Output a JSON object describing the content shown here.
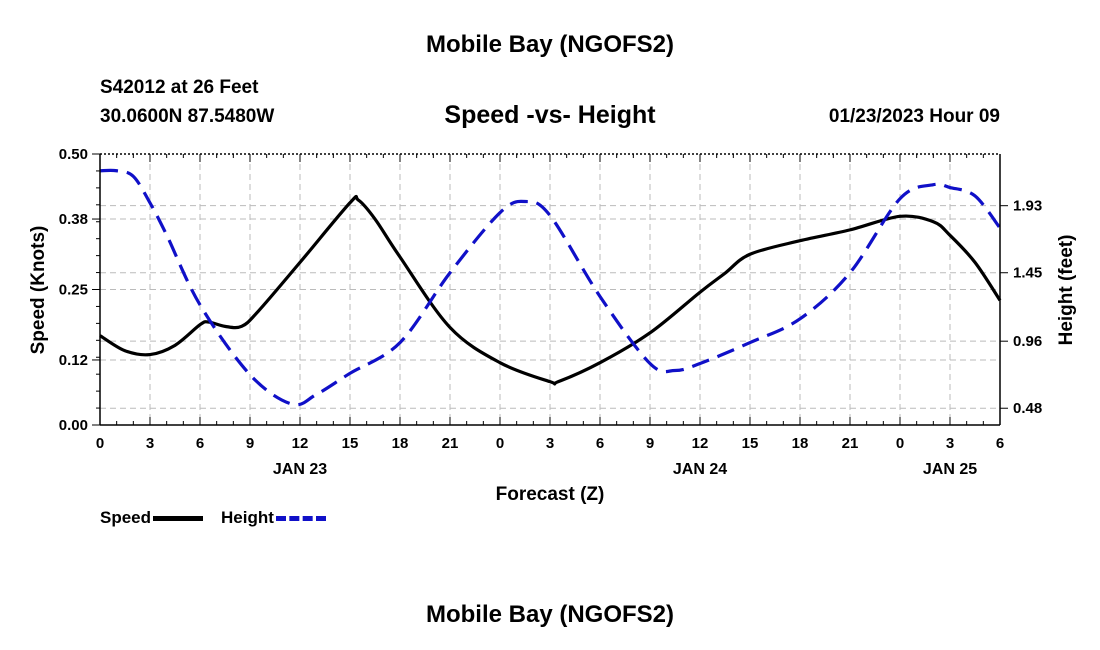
{
  "header": {
    "title": "Mobile Bay (NGOFS2)",
    "station": "S42012 at 26 Feet",
    "coords": "30.0600N  87.5480W",
    "subtitle": "Speed -vs- Height",
    "datetime": "01/23/2023 Hour 09"
  },
  "footer": {
    "title": "Mobile Bay (NGOFS2)"
  },
  "legend": {
    "speed": "Speed",
    "height": "Height"
  },
  "colors": {
    "speed": "#000000",
    "height": "#1010c8",
    "grid": "#bbbbbb"
  },
  "chart_data": {
    "type": "line",
    "xlabel": "Forecast (Z)",
    "ylabel": "Speed (Knots)",
    "y2label": "Height (feet)",
    "x_unit": "hours from 2023-01-23 00Z",
    "xlim": [
      0,
      54
    ],
    "ylim": [
      0,
      0.5
    ],
    "y2lim": [
      0.36,
      2.3
    ],
    "x_ticks": [
      0,
      3,
      6,
      9,
      12,
      15,
      18,
      21,
      24,
      27,
      30,
      33,
      36,
      39,
      42,
      45,
      48,
      51,
      54
    ],
    "x_tick_labels": [
      "0",
      "3",
      "6",
      "9",
      "12",
      "15",
      "18",
      "21",
      "0",
      "3",
      "6",
      "9",
      "12",
      "15",
      "18",
      "21",
      "0",
      "3",
      "6"
    ],
    "date_labels": [
      {
        "x": 12,
        "label": "JAN 23"
      },
      {
        "x": 36,
        "label": "JAN 24"
      },
      {
        "x": 51,
        "label": "JAN 25"
      }
    ],
    "y_ticks": [
      0.0,
      0.12,
      0.25,
      0.38,
      0.5
    ],
    "y_tick_labels": [
      "0.00",
      "0.12",
      "0.25",
      "0.38",
      "0.50"
    ],
    "y2_ticks": [
      0.48,
      0.96,
      1.45,
      1.93
    ],
    "y2_tick_labels": [
      "0.48",
      "0.96",
      "1.45",
      "1.93"
    ],
    "grid": true,
    "legend_position": "bottom-left",
    "series": [
      {
        "name": "Speed",
        "axis": "left",
        "style": "solid",
        "x": [
          0,
          1.5,
          3,
          4.5,
          6,
          6.5,
          7.5,
          8.5,
          9.5,
          12,
          15,
          15.5,
          16.5,
          18,
          21,
          24,
          27,
          27.5,
          30,
          33,
          36,
          37.5,
          39,
          42,
          45,
          48,
          50,
          51,
          52.5,
          54
        ],
        "y": [
          0.165,
          0.137,
          0.13,
          0.147,
          0.185,
          0.19,
          0.182,
          0.182,
          0.21,
          0.3,
          0.41,
          0.415,
          0.38,
          0.31,
          0.18,
          0.115,
          0.08,
          0.08,
          0.115,
          0.17,
          0.245,
          0.28,
          0.315,
          0.34,
          0.36,
          0.385,
          0.375,
          0.35,
          0.3,
          0.23
        ]
      },
      {
        "name": "Height",
        "axis": "right",
        "style": "dashed",
        "x": [
          0,
          1,
          2,
          3,
          4,
          6,
          9,
          11.5,
          13,
          15,
          18,
          21,
          24,
          25.5,
          27,
          30,
          33,
          34.5,
          36,
          39,
          42,
          45,
          48,
          50,
          51,
          52.5,
          54
        ],
        "y": [
          2.18,
          2.18,
          2.14,
          1.95,
          1.72,
          1.22,
          0.72,
          0.51,
          0.58,
          0.73,
          0.95,
          1.45,
          1.88,
          1.96,
          1.86,
          1.28,
          0.8,
          0.75,
          0.8,
          0.95,
          1.12,
          1.45,
          1.98,
          2.08,
          2.06,
          2.0,
          1.77
        ]
      }
    ]
  }
}
